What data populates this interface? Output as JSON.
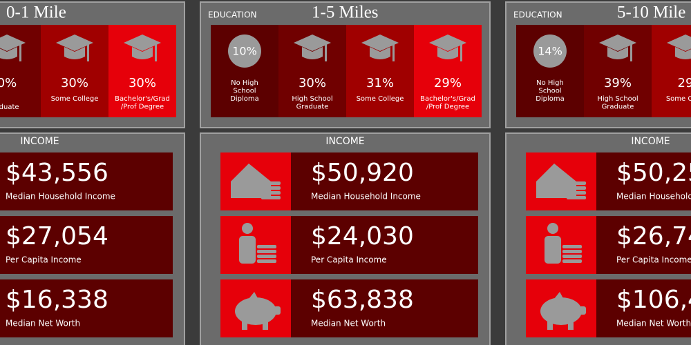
{
  "panels": [
    {
      "title": "0-1 Mile",
      "education": {
        "items": [
          {
            "value": "0%",
            "label": [
              "aduate"
            ]
          },
          {
            "value": "30%",
            "label": [
              "Some College"
            ]
          },
          {
            "value": "30%",
            "label": [
              "Bachelor's/Grad",
              "/Prof Degree"
            ]
          }
        ]
      },
      "income": {
        "title": "INCOME",
        "items": [
          {
            "value": "$43,556",
            "label": "Median Household Income"
          },
          {
            "value": "$27,054",
            "label": "Per Capita Income"
          },
          {
            "value": "$16,338",
            "label": "Median Net Worth"
          }
        ]
      }
    },
    {
      "title": "1-5 Miles",
      "education": {
        "label": "EDUCATION",
        "items": [
          {
            "value": "10%",
            "label": [
              "No High",
              "School",
              "Diploma"
            ]
          },
          {
            "value": "30%",
            "label": [
              "High School",
              "Graduate"
            ]
          },
          {
            "value": "31%",
            "label": [
              "Some College"
            ]
          },
          {
            "value": "29%",
            "label": [
              "Bachelor's/Grad",
              "/Prof Degree"
            ]
          }
        ]
      },
      "income": {
        "title": "INCOME",
        "items": [
          {
            "value": "$50,920",
            "label": "Median Household Income"
          },
          {
            "value": "$24,030",
            "label": "Per Capita Income"
          },
          {
            "value": "$63,838",
            "label": "Median Net Worth"
          }
        ]
      }
    },
    {
      "title": "5-10 Mile",
      "education": {
        "label": "EDUCATION",
        "items": [
          {
            "value": "14%",
            "label": [
              "No High",
              "School",
              "Diploma"
            ]
          },
          {
            "value": "39%",
            "label": [
              "High School",
              "Graduate"
            ]
          },
          {
            "value": "29",
            "label": [
              "Some Colle"
            ]
          }
        ]
      },
      "income": {
        "title": "INCOME",
        "items": [
          {
            "value": "$50,25",
            "label": "Median Household"
          },
          {
            "value": "$26,74",
            "label": "Per Capita Income"
          },
          {
            "value": "$106,4",
            "label": "Median Net Worth"
          }
        ]
      }
    }
  ]
}
